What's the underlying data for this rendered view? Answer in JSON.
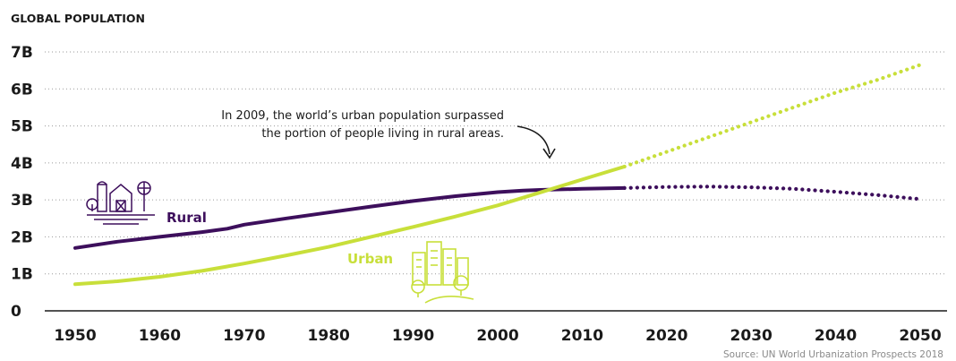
{
  "chart_data": {
    "type": "line",
    "title": "GLOBAL POPULATION",
    "xlabel": "",
    "ylabel": "",
    "xlim": [
      1950,
      2050
    ],
    "ylim": [
      0,
      7
    ],
    "x_ticks": [
      "1950",
      "1960",
      "1970",
      "1980",
      "1990",
      "2000",
      "2010",
      "2020",
      "2030",
      "2040",
      "2050"
    ],
    "y_ticks": [
      "0",
      "1B",
      "2B",
      "3B",
      "4B",
      "5B",
      "6B",
      "7B"
    ],
    "grid": "horizontal dotted",
    "projection_start": 2015,
    "annotation": {
      "lines": [
        "In 2009, the world’s urban population surpassed",
        "the portion of people living in rural areas."
      ]
    },
    "source": "Source: UN World Urbanization Prospects 2018",
    "series": [
      {
        "name": "Rural",
        "color": "#3d0f5c",
        "icon": "farm-icon",
        "x": [
          1950,
          1955,
          1960,
          1965,
          1968,
          1970,
          1975,
          1980,
          1985,
          1990,
          1995,
          2000,
          2003,
          2005,
          2010,
          2015,
          2020,
          2025,
          2030,
          2035,
          2040,
          2045,
          2050
        ],
        "values": [
          1.7,
          1.87,
          2.0,
          2.13,
          2.22,
          2.33,
          2.5,
          2.66,
          2.82,
          2.97,
          3.1,
          3.21,
          3.25,
          3.27,
          3.3,
          3.32,
          3.35,
          3.36,
          3.34,
          3.3,
          3.22,
          3.13,
          3.02
        ]
      },
      {
        "name": "Urban",
        "color": "#c8df3a",
        "icon": "city-icon",
        "x": [
          1950,
          1955,
          1960,
          1965,
          1970,
          1975,
          1980,
          1985,
          1990,
          1995,
          2000,
          2005,
          2010,
          2015,
          2020,
          2025,
          2030,
          2035,
          2040,
          2045,
          2050
        ],
        "values": [
          0.72,
          0.8,
          0.92,
          1.08,
          1.28,
          1.5,
          1.73,
          2.0,
          2.27,
          2.55,
          2.85,
          3.2,
          3.55,
          3.9,
          4.3,
          4.7,
          5.1,
          5.5,
          5.9,
          6.25,
          6.65
        ]
      }
    ]
  }
}
